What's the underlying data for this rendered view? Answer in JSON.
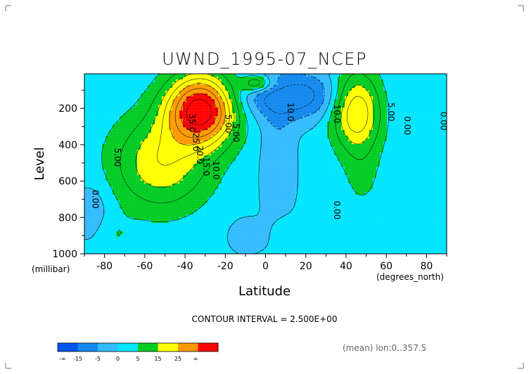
{
  "chart_data": {
    "type": "heatmap",
    "title": "UWND_1995-07_NCEP",
    "xlabel": "Latitude",
    "ylabel": "Level",
    "x_units": "(degrees_north)",
    "y_units": "(millibar)",
    "xlim": [
      -90,
      90
    ],
    "ylim": [
      1000,
      10
    ],
    "x_ticks": [
      -80,
      -60,
      -40,
      -20,
      0,
      20,
      40,
      60,
      80
    ],
    "y_ticks": [
      200,
      400,
      600,
      800,
      1000
    ],
    "contour_interval_text": "CONTOUR INTERVAL = 2.500E+00",
    "footer_note": "(mean) lon:0..357.5",
    "legend": {
      "labels": [
        "-∞",
        "-15",
        "-5",
        "0",
        "5",
        "15",
        "25",
        "∞"
      ],
      "colors": [
        "#0055ee",
        "#1188ee",
        "#33bbff",
        "#00e5ff",
        "#00cc22",
        "#ffff00",
        "#ff9900",
        "#ff0000"
      ]
    },
    "contour_labels": [
      {
        "text": "35.0",
        "x": -38,
        "y": 280
      },
      {
        "text": "25.0",
        "x": -36,
        "y": 385
      },
      {
        "text": "20.0",
        "x": -34,
        "y": 455
      },
      {
        "text": "15.0",
        "x": -31,
        "y": 520
      },
      {
        "text": "10.0",
        "x": -26,
        "y": 540
      },
      {
        "text": "5.00",
        "x": -75,
        "y": 470
      },
      {
        "text": "5.00",
        "x": -16,
        "y": 335
      },
      {
        "text": "5.00",
        "x": -20,
        "y": 285
      },
      {
        "text": "0.00",
        "x": -86,
        "y": 700
      },
      {
        "text": "10.0",
        "x": 11,
        "y": 220
      },
      {
        "text": "10.0",
        "x": 34,
        "y": 230
      },
      {
        "text": "5.00",
        "x": 61,
        "y": 220
      },
      {
        "text": "0.00",
        "x": 69,
        "y": 295
      },
      {
        "text": "0.00",
        "x": 87,
        "y": 270
      },
      {
        "text": "0.00",
        "x": 34,
        "y": 760
      }
    ],
    "jets": [
      {
        "name": "southern_hemisphere_jet",
        "lat": -32,
        "level": 200,
        "max_u": 40
      },
      {
        "name": "northern_hemisphere_jet",
        "lat": 44,
        "level": 200,
        "max_u": 25
      }
    ]
  }
}
